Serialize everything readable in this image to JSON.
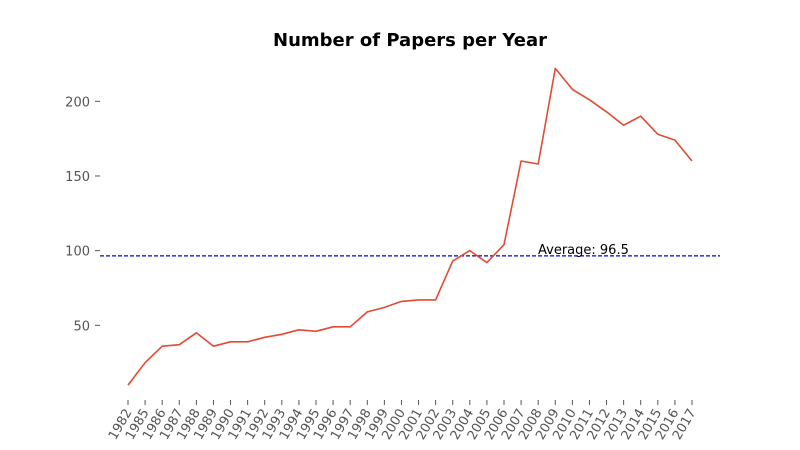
{
  "chart_data": {
    "type": "line",
    "title": "Number of Papers per Year",
    "xlabel": "",
    "ylabel": "",
    "categories": [
      "1982",
      "1985",
      "1986",
      "1987",
      "1988",
      "1989",
      "1990",
      "1991",
      "1992",
      "1993",
      "1994",
      "1995",
      "1996",
      "1997",
      "1998",
      "1999",
      "2000",
      "2001",
      "2002",
      "2003",
      "2004",
      "2005",
      "2006",
      "2007",
      "2008",
      "2009",
      "2010",
      "2011",
      "2012",
      "2013",
      "2014",
      "2015",
      "2016",
      "2017"
    ],
    "series": [
      {
        "values": [
          10,
          25,
          36,
          37,
          45,
          36,
          39,
          39,
          42,
          44,
          47,
          46,
          49,
          49,
          59,
          62,
          66,
          67,
          67,
          93,
          100,
          92,
          104,
          160,
          158,
          222,
          208,
          201,
          193,
          184,
          190,
          178,
          174,
          160
        ],
        "color": "#e24a33"
      }
    ],
    "yticks": [
      50,
      100,
      150,
      200
    ],
    "ylim": [
      0,
      231
    ],
    "reference_line": {
      "value": 96.5,
      "label": "Average: 96.5",
      "color": "#0000cc",
      "style": "dashed"
    },
    "grid": false,
    "legend": "none"
  }
}
